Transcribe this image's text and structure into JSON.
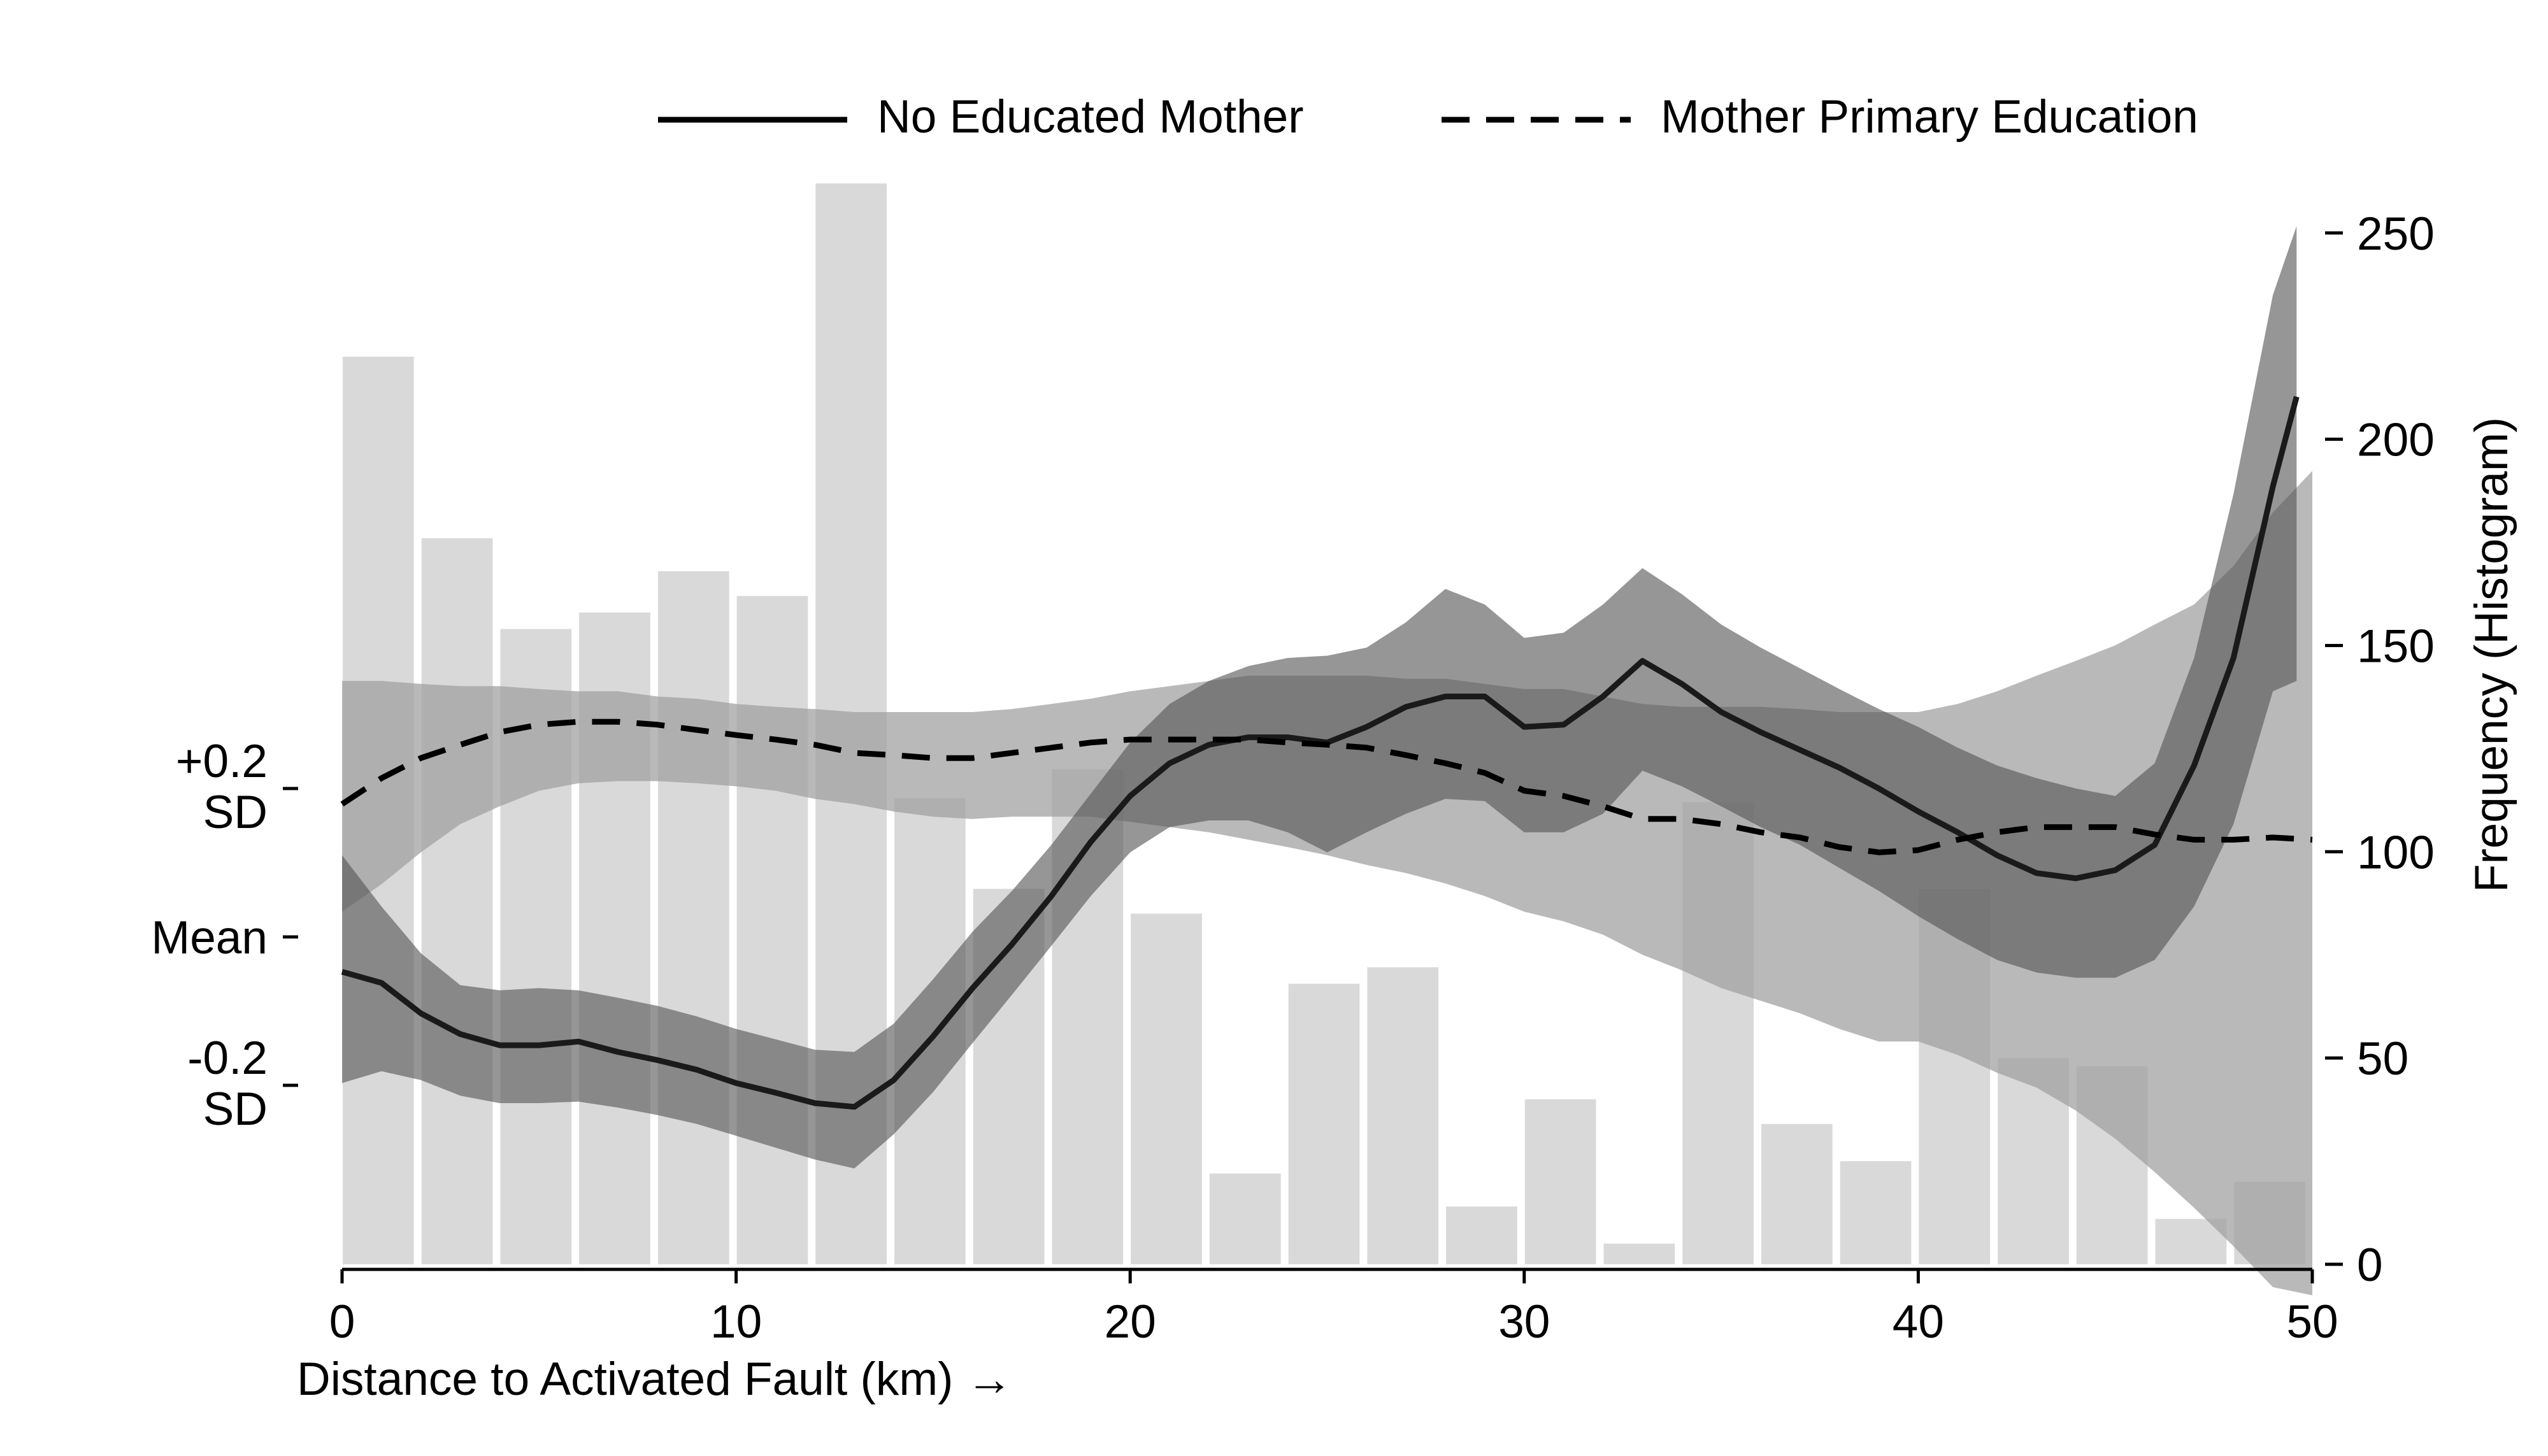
{
  "chart_data": {
    "type": "line",
    "title": "",
    "xlabel": "Distance to Activated Fault (km) →",
    "ylabel_right": "Frequency (Histogram)",
    "xlim": [
      0,
      50
    ],
    "x_ticks": [
      "0",
      "10",
      "20",
      "30",
      "40",
      "50"
    ],
    "ylim_right": [
      0,
      260
    ],
    "y_right_ticks": [
      "0",
      "50",
      "100",
      "150",
      "200",
      "250"
    ],
    "y_left_ticks": [
      {
        "label_lines": [
          "+0.2",
          "SD"
        ],
        "value": 0.2
      },
      {
        "label_lines": [
          "Mean"
        ],
        "value": 0.0
      },
      {
        "label_lines": [
          "-0.2",
          "SD"
        ],
        "value": -0.2
      }
    ],
    "y_left_range": [
      -0.483,
      0.958
    ],
    "legend": {
      "placement": "top",
      "entries": [
        "No Educated Mother",
        "Mother Primary Education"
      ]
    },
    "histogram": {
      "bin_width": 2,
      "bins_start": [
        0,
        2,
        4,
        6,
        8,
        10,
        12,
        14,
        16,
        18,
        20,
        22,
        24,
        26,
        28,
        30,
        32,
        34,
        36,
        38,
        40,
        42,
        44,
        46,
        48
      ],
      "counts": [
        220,
        176,
        154,
        158,
        168,
        162,
        262,
        113,
        91,
        120,
        85,
        22,
        68,
        72,
        14,
        40,
        5,
        112,
        34,
        25,
        91,
        50,
        48,
        11,
        20
      ],
      "color": "#d9d9d9"
    },
    "series": [
      {
        "name": "No Educated Mother",
        "style": "solid",
        "color": "#1a1a1a",
        "x": [
          0,
          1,
          2,
          3,
          4,
          5,
          6,
          7,
          8,
          9,
          10,
          11,
          12,
          13,
          14,
          15,
          16,
          17,
          18,
          19,
          20,
          21,
          22,
          23,
          24,
          25,
          26,
          27,
          28,
          29,
          30,
          31,
          32,
          33,
          34,
          35,
          36,
          37,
          38,
          39,
          40,
          41,
          42,
          43,
          44,
          45,
          46,
          47,
          48,
          49,
          49.6
        ],
        "y": [
          -0.047,
          -0.062,
          -0.103,
          -0.131,
          -0.146,
          -0.146,
          -0.141,
          -0.155,
          -0.166,
          -0.179,
          -0.197,
          -0.21,
          -0.224,
          -0.229,
          -0.193,
          -0.134,
          -0.069,
          -0.01,
          0.055,
          0.128,
          0.19,
          0.234,
          0.259,
          0.269,
          0.269,
          0.262,
          0.283,
          0.31,
          0.324,
          0.324,
          0.283,
          0.286,
          0.324,
          0.372,
          0.341,
          0.303,
          0.276,
          0.252,
          0.228,
          0.2,
          0.169,
          0.141,
          0.11,
          0.086,
          0.079,
          0.09,
          0.124,
          0.231,
          0.376,
          0.607,
          0.728
        ],
        "ci_lower": [
          -0.197,
          -0.181,
          -0.193,
          -0.214,
          -0.224,
          -0.224,
          -0.222,
          -0.23,
          -0.24,
          -0.252,
          -0.268,
          -0.284,
          -0.3,
          -0.312,
          -0.266,
          -0.209,
          -0.143,
          -0.078,
          -0.012,
          0.055,
          0.114,
          0.148,
          0.157,
          0.157,
          0.141,
          0.114,
          0.141,
          0.166,
          0.186,
          0.183,
          0.141,
          0.141,
          0.166,
          0.224,
          0.203,
          0.176,
          0.148,
          0.124,
          0.093,
          0.062,
          0.028,
          -0.003,
          -0.031,
          -0.048,
          -0.055,
          -0.055,
          -0.031,
          0.041,
          0.152,
          0.331,
          0.345
        ],
        "ci_upper": [
          0.11,
          0.041,
          -0.022,
          -0.065,
          -0.072,
          -0.069,
          -0.072,
          -0.082,
          -0.093,
          -0.107,
          -0.124,
          -0.138,
          -0.152,
          -0.155,
          -0.117,
          -0.057,
          0.007,
          0.062,
          0.124,
          0.193,
          0.262,
          0.314,
          0.345,
          0.365,
          0.376,
          0.379,
          0.39,
          0.424,
          0.469,
          0.448,
          0.403,
          0.41,
          0.448,
          0.497,
          0.462,
          0.421,
          0.39,
          0.362,
          0.334,
          0.307,
          0.283,
          0.255,
          0.231,
          0.214,
          0.2,
          0.19,
          0.234,
          0.376,
          0.597,
          0.865,
          0.958
        ],
        "ci_color": "#555555"
      },
      {
        "name": "Mother Primary Education",
        "style": "dashed",
        "color": "#000000",
        "x": [
          0,
          1,
          2,
          3,
          4,
          5,
          6,
          7,
          8,
          9,
          10,
          11,
          12,
          13,
          14,
          15,
          16,
          17,
          18,
          19,
          20,
          21,
          22,
          23,
          24,
          25,
          26,
          27,
          28,
          29,
          30,
          31,
          32,
          33,
          34,
          35,
          36,
          37,
          38,
          39,
          40,
          41,
          42,
          43,
          44,
          45,
          46,
          47,
          48,
          49,
          50
        ],
        "y": [
          0.179,
          0.214,
          0.241,
          0.259,
          0.276,
          0.286,
          0.29,
          0.29,
          0.286,
          0.279,
          0.272,
          0.266,
          0.259,
          0.248,
          0.245,
          0.241,
          0.241,
          0.248,
          0.255,
          0.262,
          0.266,
          0.266,
          0.266,
          0.266,
          0.262,
          0.259,
          0.255,
          0.245,
          0.234,
          0.221,
          0.197,
          0.19,
          0.176,
          0.159,
          0.159,
          0.152,
          0.141,
          0.134,
          0.121,
          0.114,
          0.117,
          0.131,
          0.141,
          0.148,
          0.148,
          0.148,
          0.138,
          0.131,
          0.131,
          0.134,
          0.131
        ],
        "ci_lower": [
          0.034,
          0.071,
          0.114,
          0.152,
          0.176,
          0.197,
          0.207,
          0.21,
          0.21,
          0.207,
          0.203,
          0.197,
          0.186,
          0.179,
          0.169,
          0.162,
          0.159,
          0.162,
          0.162,
          0.162,
          0.155,
          0.148,
          0.141,
          0.131,
          0.121,
          0.11,
          0.097,
          0.086,
          0.072,
          0.055,
          0.034,
          0.021,
          0.003,
          -0.024,
          -0.045,
          -0.069,
          -0.086,
          -0.103,
          -0.124,
          -0.141,
          -0.141,
          -0.159,
          -0.183,
          -0.203,
          -0.234,
          -0.272,
          -0.317,
          -0.365,
          -0.417,
          -0.472,
          -0.483
        ],
        "ci_upper": [
          0.345,
          0.345,
          0.341,
          0.338,
          0.338,
          0.334,
          0.331,
          0.331,
          0.324,
          0.321,
          0.314,
          0.31,
          0.307,
          0.303,
          0.303,
          0.303,
          0.303,
          0.307,
          0.314,
          0.321,
          0.331,
          0.338,
          0.345,
          0.352,
          0.352,
          0.352,
          0.352,
          0.348,
          0.348,
          0.341,
          0.334,
          0.334,
          0.324,
          0.314,
          0.31,
          0.31,
          0.31,
          0.307,
          0.303,
          0.303,
          0.303,
          0.314,
          0.331,
          0.352,
          0.372,
          0.393,
          0.421,
          0.448,
          0.5,
          0.572,
          0.628
        ],
        "ci_color": "#9e9e9e"
      }
    ]
  }
}
